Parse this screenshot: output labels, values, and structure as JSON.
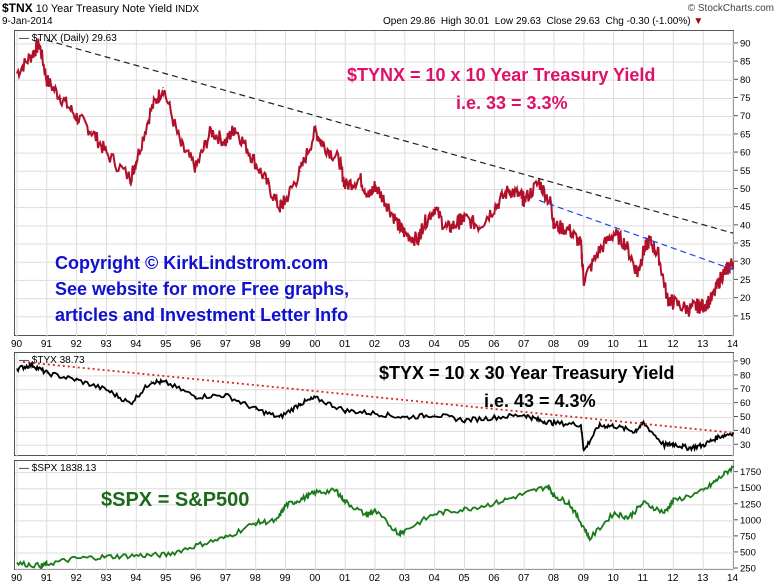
{
  "header": {
    "symbol": "$TNX",
    "name": "10 Year Treasury Note Yield",
    "exchange": "INDX",
    "date": "9-Jan-2014",
    "credit": "© StockCharts.com",
    "quote": {
      "open_label": "Open",
      "open": "29.86",
      "high_label": "High",
      "high": "30.01",
      "low_label": "Low",
      "low": "29.63",
      "close_label": "Close",
      "close": "29.63",
      "chg_label": "Chg",
      "chg": "-0.30 (-1.00%)"
    }
  },
  "annotations": {
    "tnx_line1": "$TYNX = 10 x 10 Year Treasury Yield",
    "tnx_line2": "i.e. 33 = 3.3%",
    "copyright_line1": "Copyright © KirkLindstrom.com",
    "copyright_line2": "See website for more Free graphs,",
    "copyright_line3": "articles and Investment Letter Info",
    "tyx_line1": "$TYX = 10 x 30 Year Treasury Yield",
    "tyx_line2": "i.e. 43 = 4.3%",
    "spx_label": "$SPX = S&P500"
  },
  "colors": {
    "tnx": "#b0102a",
    "tyx": "#000000",
    "spx": "#1a7a1a",
    "magenta": "#e0106a",
    "blue_text": "#1010d0",
    "green_text": "#1a6a1a",
    "trend_black": "#222222",
    "trend_blue": "#2244ee",
    "trend_red": "#dd2222"
  },
  "chart_data": [
    {
      "type": "line",
      "legend": "$TNX (Daily) 29.63",
      "x_tick_labels": [
        "90",
        "91",
        "92",
        "93",
        "94",
        "95",
        "96",
        "97",
        "98",
        "99",
        "00",
        "01",
        "02",
        "03",
        "04",
        "05",
        "06",
        "07",
        "08",
        "09",
        "10",
        "11",
        "12",
        "13",
        "14"
      ],
      "y_ticks": [
        15,
        20,
        25,
        30,
        35,
        40,
        45,
        50,
        55,
        60,
        65,
        70,
        75,
        80,
        85,
        90
      ],
      "ylim": [
        10,
        93
      ],
      "x": [
        1990.0,
        1990.5,
        1990.75,
        1991.0,
        1991.5,
        1992.0,
        1992.5,
        1993.0,
        1993.8,
        1994.0,
        1994.5,
        1994.9,
        1995.5,
        1996.0,
        1996.5,
        1997.0,
        1997.3,
        1997.8,
        1998.3,
        1998.8,
        1999.0,
        1999.5,
        2000.0,
        2000.3,
        2000.8,
        2001.0,
        2001.5,
        2001.8,
        2002.0,
        2002.4,
        2002.8,
        2003.0,
        2003.45,
        2003.6,
        2004.0,
        2004.4,
        2004.8,
        2005.0,
        2005.5,
        2006.0,
        2006.5,
        2006.9,
        2007.0,
        2007.5,
        2007.9,
        2008.0,
        2008.5,
        2008.9,
        2009.0,
        2009.5,
        2010.0,
        2010.4,
        2010.8,
        2011.0,
        2011.2,
        2011.5,
        2011.8,
        2012.0,
        2012.5,
        2012.8,
        2013.0,
        2013.3,
        2013.6,
        2013.8,
        2014.0
      ],
      "y": [
        82,
        87,
        90,
        80,
        75,
        70,
        66,
        60,
        53,
        58,
        72,
        78,
        62,
        56,
        66,
        63,
        67,
        60,
        53,
        45,
        47,
        55,
        66,
        62,
        58,
        51,
        53,
        48,
        51,
        46,
        40,
        38,
        36,
        40,
        45,
        39,
        41,
        42,
        40,
        45,
        50,
        48,
        47,
        52,
        46,
        40,
        39,
        35,
        25,
        33,
        38,
        35,
        27,
        33,
        36,
        32,
        20,
        19,
        17,
        18,
        18,
        20,
        26,
        28,
        30
      ]
    },
    {
      "type": "line",
      "legend": "$TYX 38.73",
      "x_tick_labels": [
        "90",
        "91",
        "92",
        "93",
        "94",
        "95",
        "96",
        "97",
        "98",
        "99",
        "00",
        "01",
        "02",
        "03",
        "04",
        "05",
        "06",
        "07",
        "08",
        "09",
        "10",
        "11",
        "12",
        "13",
        "14"
      ],
      "y_ticks": [
        30,
        40,
        50,
        60,
        70,
        80,
        90
      ],
      "ylim": [
        23,
        95
      ],
      "x": [
        1990.0,
        1990.5,
        1991.0,
        1992.0,
        1993.0,
        1993.8,
        1994.5,
        1995.0,
        1996.0,
        1997.0,
        1998.0,
        1998.8,
        1999.5,
        2000.0,
        2001.0,
        2002.0,
        2003.0,
        2004.0,
        2005.0,
        2006.0,
        2007.0,
        2007.5,
        2008.0,
        2008.9,
        2009.0,
        2009.5,
        2010.0,
        2010.7,
        2011.0,
        2011.7,
        2012.0,
        2012.5,
        2013.0,
        2013.5,
        2014.0
      ],
      "y": [
        85,
        88,
        82,
        77,
        70,
        60,
        76,
        75,
        65,
        66,
        56,
        50,
        60,
        64,
        55,
        53,
        50,
        52,
        48,
        50,
        52,
        48,
        46,
        45,
        26,
        44,
        44,
        40,
        46,
        30,
        31,
        28,
        30,
        36,
        39
      ]
    },
    {
      "type": "line",
      "legend": "$SPX 1838.13",
      "x_tick_labels": [
        "90",
        "91",
        "92",
        "93",
        "94",
        "95",
        "96",
        "97",
        "98",
        "99",
        "00",
        "01",
        "02",
        "03",
        "04",
        "05",
        "06",
        "07",
        "08",
        "09",
        "10",
        "11",
        "12",
        "13",
        "14"
      ],
      "y_ticks": [
        250,
        500,
        750,
        1000,
        1250,
        1500,
        1750
      ],
      "ylim": [
        250,
        1900
      ],
      "x": [
        1990.0,
        1990.8,
        1991.0,
        1992.0,
        1993.0,
        1994.0,
        1995.0,
        1996.0,
        1997.0,
        1998.0,
        1998.7,
        1999.0,
        1999.5,
        2000.0,
        2000.7,
        2001.0,
        2001.7,
        2002.0,
        2002.8,
        2003.0,
        2004.0,
        2005.0,
        2006.0,
        2007.0,
        2007.8,
        2008.0,
        2008.5,
        2009.0,
        2009.2,
        2010.0,
        2010.5,
        2011.0,
        2011.7,
        2012.0,
        2013.0,
        2013.5,
        2014.0
      ],
      "y": [
        340,
        300,
        330,
        415,
        440,
        460,
        470,
        615,
        740,
        970,
        1000,
        1240,
        1330,
        1440,
        1470,
        1300,
        1090,
        1150,
        800,
        850,
        1110,
        1180,
        1270,
        1420,
        1540,
        1390,
        1280,
        900,
        720,
        1120,
        1050,
        1280,
        1130,
        1310,
        1460,
        1650,
        1838
      ]
    }
  ]
}
